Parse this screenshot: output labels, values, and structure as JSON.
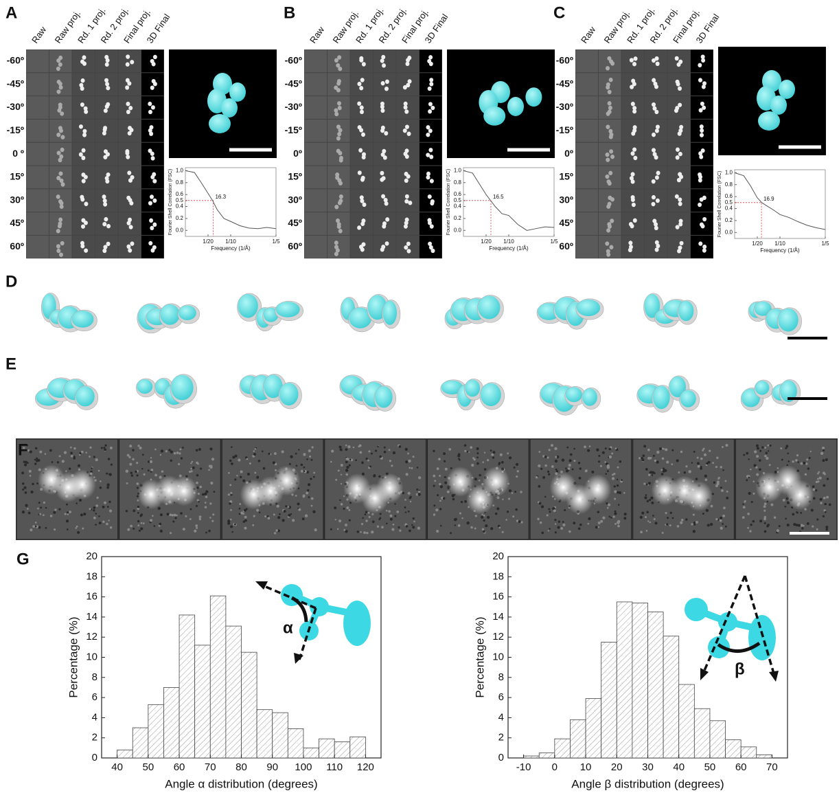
{
  "panel_labels": [
    "A",
    "B",
    "C",
    "D",
    "E",
    "F",
    "G"
  ],
  "tilt_series": {
    "column_headers": [
      "Raw",
      "Raw proj.",
      "Rd. 1 proj.",
      "Rd. 2 proj.",
      "Final proj.",
      "3D Final"
    ],
    "row_labels": [
      [
        "-60º",
        "-45º",
        "-30º",
        "-15º",
        "0 º",
        "15º",
        "30º",
        "45º",
        "60º"
      ],
      [
        "-60º",
        "-45º",
        "-30º",
        "-15º",
        "0º",
        "15º",
        "30º",
        "45º",
        "60º"
      ],
      [
        "-60º",
        "-45º",
        "-30º",
        "-15º",
        "0º",
        "15º",
        "30º",
        "45º",
        "60º"
      ]
    ]
  },
  "chart_data": [
    {
      "type": "line",
      "x_label": "Frequency (1/Å)",
      "y_label": "Fourier Shell Correlation (FSC)",
      "annotation": "16.3",
      "threshold": 0.5,
      "x": [
        0,
        0.02,
        0.035,
        0.05,
        0.06,
        0.07,
        0.085,
        0.1,
        0.12,
        0.14,
        0.16,
        0.18,
        0.2
      ],
      "series": [
        {
          "color": "#555555",
          "values": [
            1.0,
            0.97,
            0.8,
            0.62,
            0.5,
            0.35,
            0.2,
            0.15,
            0.08,
            0.04,
            0.03,
            0.05,
            0.03
          ]
        }
      ],
      "xlim": [
        0,
        0.2
      ],
      "ylim": [
        -0.1,
        1.05
      ],
      "xticks": [
        {
          "value": 0.05,
          "label": "1/20"
        },
        {
          "value": 0.1,
          "label": "1/10"
        },
        {
          "value": 0.2,
          "label": "1/5"
        }
      ],
      "yticks": [
        {
          "value": 0,
          "label": "0.0"
        },
        0.2,
        0.4,
        0.5,
        0.6,
        0.8,
        {
          "value": 1,
          "label": "1.0"
        }
      ]
    },
    {
      "type": "line",
      "x_label": "Frequency (1/Å)",
      "y_label": "Fourier Shell Correlation (FSC)",
      "annotation": "16.5",
      "threshold": 0.5,
      "x": [
        0,
        0.02,
        0.035,
        0.05,
        0.06,
        0.07,
        0.085,
        0.1,
        0.12,
        0.14,
        0.16,
        0.18,
        0.2
      ],
      "series": [
        {
          "color": "#555555",
          "values": [
            1.0,
            0.96,
            0.78,
            0.6,
            0.5,
            0.4,
            0.28,
            0.25,
            0.1,
            0.0,
            0.03,
            0.06,
            0.05
          ]
        }
      ],
      "xlim": [
        0,
        0.2
      ],
      "ylim": [
        -0.1,
        1.05
      ],
      "xticks": [
        {
          "value": 0.05,
          "label": "1/20"
        },
        {
          "value": 0.1,
          "label": "1/10"
        },
        {
          "value": 0.2,
          "label": "1/5"
        }
      ],
      "yticks": [
        {
          "value": 0,
          "label": "0.0"
        },
        0.2,
        0.4,
        0.5,
        0.6,
        0.8,
        {
          "value": 1,
          "label": "1.0"
        }
      ]
    },
    {
      "type": "line",
      "x_label": "Frequency (1/Å)",
      "y_label": "Fourier Shell Correlation (FSC)",
      "annotation": "16.9",
      "threshold": 0.5,
      "x": [
        0,
        0.02,
        0.035,
        0.05,
        0.06,
        0.07,
        0.085,
        0.1,
        0.12,
        0.14,
        0.16,
        0.18,
        0.2
      ],
      "series": [
        {
          "color": "#555555",
          "values": [
            1.0,
            0.95,
            0.78,
            0.58,
            0.5,
            0.45,
            0.38,
            0.3,
            0.25,
            0.18,
            0.12,
            0.08,
            0.05
          ]
        }
      ],
      "xlim": [
        0,
        0.2
      ],
      "ylim": [
        -0.1,
        1.05
      ],
      "xticks": [
        {
          "value": 0.05,
          "label": "1/20"
        },
        {
          "value": 0.1,
          "label": "1/10"
        },
        {
          "value": 0.2,
          "label": "1/5"
        }
      ],
      "yticks": [
        {
          "value": 0,
          "label": "0.0"
        },
        0.2,
        0.4,
        0.5,
        0.6,
        0.8,
        {
          "value": 1,
          "label": "1.0"
        }
      ]
    },
    {
      "type": "histogram",
      "x_label": "Angle α distribution (degrees)",
      "y_label": "Percentage (%)",
      "inset_label": "α",
      "color": "#ffffff",
      "bins": [
        40,
        45,
        50,
        55,
        60,
        65,
        70,
        75,
        80,
        85,
        90,
        95,
        100,
        105,
        110,
        115,
        120
      ],
      "values": [
        0.8,
        3.0,
        5.3,
        7.0,
        14.2,
        11.2,
        16.1,
        13.1,
        10.5,
        4.8,
        4.5,
        2.9,
        1.0,
        1.9,
        1.6,
        2.1
      ],
      "xlim": [
        35,
        125
      ],
      "ylim": [
        0,
        20
      ],
      "xticks": [
        40,
        50,
        60,
        70,
        80,
        90,
        100,
        110,
        120
      ],
      "yticks": [
        0,
        2,
        4,
        6,
        8,
        10,
        12,
        14,
        16,
        18,
        20
      ]
    },
    {
      "type": "histogram",
      "x_label": "Angle β distribution (degrees)",
      "y_label": "Percentage (%)",
      "inset_label": "β",
      "color": "#ffffff",
      "bins": [
        -10,
        -5,
        0,
        5,
        10,
        15,
        20,
        25,
        30,
        35,
        40,
        45,
        50,
        55,
        60,
        65,
        70
      ],
      "values": [
        0.2,
        0.5,
        1.9,
        3.8,
        5.9,
        11.5,
        15.5,
        15.4,
        14.5,
        12.1,
        7.3,
        4.9,
        3.7,
        1.8,
        1.1,
        0.3
      ],
      "xlim": [
        -15,
        75
      ],
      "ylim": [
        0,
        20
      ],
      "xticks": [
        -10,
        0,
        10,
        20,
        30,
        40,
        50,
        60,
        70
      ],
      "yticks": [
        0,
        2,
        4,
        6,
        8,
        10,
        12,
        14,
        16,
        18,
        20
      ]
    }
  ]
}
